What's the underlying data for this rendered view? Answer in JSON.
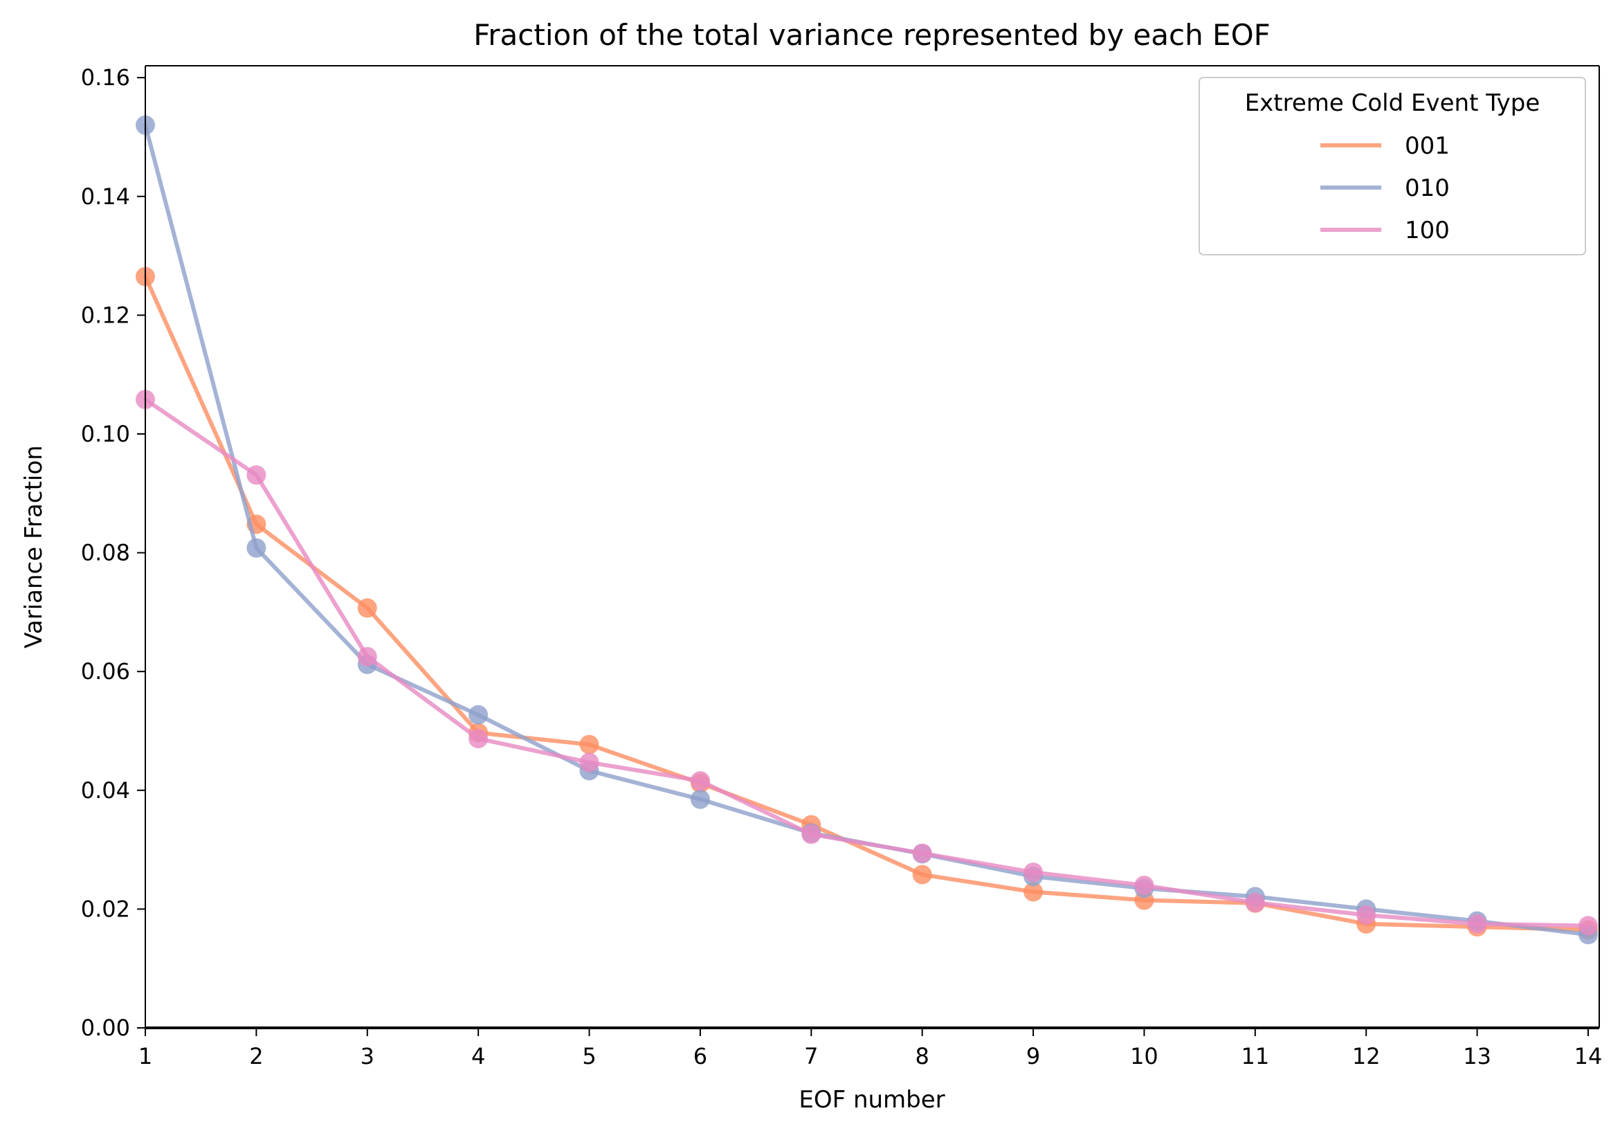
{
  "chart_data": {
    "type": "line",
    "title": "Fraction of the total variance represented by each EOF",
    "xlabel": "EOF number",
    "ylabel": "Variance Fraction",
    "xlim": [
      1,
      14.1
    ],
    "ylim": [
      0,
      0.162
    ],
    "x": [
      1,
      2,
      3,
      4,
      5,
      6,
      7,
      8,
      9,
      10,
      11,
      12,
      13,
      14
    ],
    "xticks": [
      1,
      2,
      3,
      4,
      5,
      6,
      7,
      8,
      9,
      10,
      11,
      12,
      13,
      14
    ],
    "yticks": [
      "0.00",
      "0.02",
      "0.04",
      "0.06",
      "0.08",
      "0.10",
      "0.12",
      "0.14",
      "0.16"
    ],
    "grid": false,
    "legend": {
      "title": "Extreme Cold Event Type",
      "placement": "top-right"
    },
    "series": [
      {
        "name": "001",
        "color": "#fc8d62",
        "values": [
          0.1265,
          0.0848,
          0.0707,
          0.0497,
          0.0477,
          0.0412,
          0.0342,
          0.0258,
          0.0229,
          0.0215,
          0.021,
          0.0175,
          0.017,
          0.0165
        ]
      },
      {
        "name": "010",
        "color": "#8da0cb",
        "values": [
          0.152,
          0.0808,
          0.0612,
          0.0527,
          0.0433,
          0.0385,
          0.0328,
          0.0293,
          0.0255,
          0.0235,
          0.0221,
          0.02,
          0.018,
          0.0157
        ]
      },
      {
        "name": "100",
        "color": "#e78ac3",
        "values": [
          0.1058,
          0.0931,
          0.0625,
          0.0487,
          0.0447,
          0.0416,
          0.0326,
          0.0294,
          0.0262,
          0.024,
          0.0211,
          0.019,
          0.0175,
          0.0172
        ]
      }
    ]
  }
}
